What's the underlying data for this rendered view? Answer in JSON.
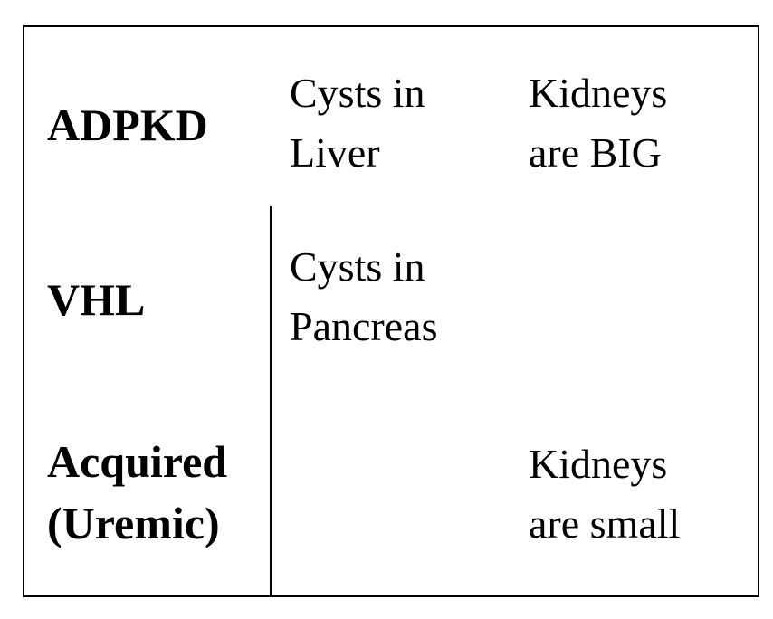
{
  "rows": [
    {
      "name": "ADPKD",
      "name_lines": [
        "ADPKD"
      ],
      "cysts_lines": [
        "Cysts in",
        "Liver"
      ],
      "kidney_lines": [
        "Kidneys",
        "are BIG"
      ]
    },
    {
      "name": "VHL",
      "name_lines": [
        "VHL"
      ],
      "cysts_lines": [
        "Cysts in",
        "Pancreas"
      ],
      "kidney_lines": []
    },
    {
      "name": "Acquired (Uremic)",
      "name_lines": [
        "Acquired",
        "(Uremic)"
      ],
      "cysts_lines": [],
      "kidney_lines": [
        "Kidneys",
        "are small"
      ]
    }
  ],
  "colors": {
    "text": "#000000",
    "border": "#000000",
    "background": "#ffffff"
  }
}
